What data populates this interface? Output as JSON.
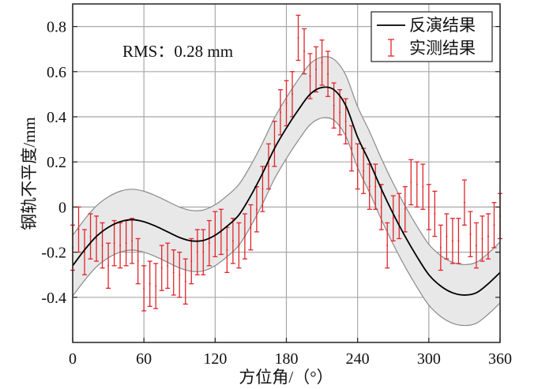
{
  "chart_data": {
    "type": "line",
    "title": "",
    "xlabel": "方位角/（°）",
    "ylabel": "钢轨不平度/mm",
    "xlim": [
      0,
      360
    ],
    "ylim": [
      -0.6,
      0.9
    ],
    "xticks": [
      0,
      60,
      120,
      180,
      240,
      300,
      360
    ],
    "xtick_labels": [
      "0",
      "60",
      "120",
      "180",
      "240",
      "300",
      "360"
    ],
    "yticks": [
      -0.4,
      -0.2,
      0,
      0.2,
      0.4,
      0.6,
      0.8
    ],
    "ytick_labels": [
      "-0.4",
      "-0.2",
      "0",
      "0.2",
      "0.4",
      "0.6",
      "0.8"
    ],
    "grid": true,
    "annotation": "RMS：0.28 mm",
    "legend": {
      "placement": "top-right",
      "entries": [
        "反演结果",
        "实测结果"
      ]
    },
    "colors": {
      "inversion": "#000000",
      "measured": "#e0252b",
      "band_fill": "#e8e8e8",
      "band_edge": "#8a8a8a",
      "grid": "#a8a8a8"
    },
    "inversion": {
      "name": "反演结果",
      "x": [
        0,
        10,
        20,
        30,
        40,
        50,
        60,
        70,
        80,
        90,
        100,
        110,
        120,
        130,
        140,
        150,
        160,
        170,
        180,
        190,
        200,
        210,
        220,
        230,
        240,
        250,
        260,
        270,
        280,
        290,
        300,
        310,
        320,
        330,
        340,
        350,
        360
      ],
      "y": [
        -0.26,
        -0.19,
        -0.13,
        -0.09,
        -0.065,
        -0.056,
        -0.065,
        -0.085,
        -0.11,
        -0.135,
        -0.15,
        -0.148,
        -0.125,
        -0.085,
        -0.035,
        0.05,
        0.15,
        0.26,
        0.35,
        0.43,
        0.5,
        0.53,
        0.52,
        0.45,
        0.31,
        0.2,
        0.08,
        -0.03,
        -0.13,
        -0.22,
        -0.3,
        -0.35,
        -0.38,
        -0.39,
        -0.38,
        -0.34,
        -0.29
      ],
      "band_halfwidth": 0.135
    },
    "measured": {
      "name": "实测结果",
      "x_start": 0,
      "x_step": 5,
      "y": [
        -0.18,
        -0.1,
        -0.2,
        -0.13,
        -0.14,
        -0.17,
        -0.26,
        -0.16,
        -0.17,
        -0.16,
        -0.15,
        -0.24,
        -0.36,
        -0.34,
        -0.35,
        -0.27,
        -0.26,
        -0.29,
        -0.3,
        -0.33,
        -0.24,
        -0.2,
        -0.2,
        -0.16,
        -0.12,
        -0.11,
        -0.19,
        -0.15,
        -0.17,
        -0.13,
        -0.09,
        -0.01,
        0.08,
        0.18,
        0.28,
        0.42,
        0.46,
        0.5,
        0.75,
        0.69,
        0.58,
        0.61,
        0.64,
        0.59,
        0.45,
        0.42,
        0.38,
        0.26,
        0.18,
        0.16,
        0.09,
        0.09,
        0.0,
        -0.17,
        -0.05,
        -0.04,
        -0.01,
        0.11,
        0.1,
        0.09,
        0.0,
        -0.03,
        -0.18,
        -0.13,
        -0.15,
        -0.15,
        0.02,
        -0.12,
        -0.17,
        -0.14,
        -0.13,
        -0.08,
        -0.04
      ],
      "error": 0.1
    }
  }
}
